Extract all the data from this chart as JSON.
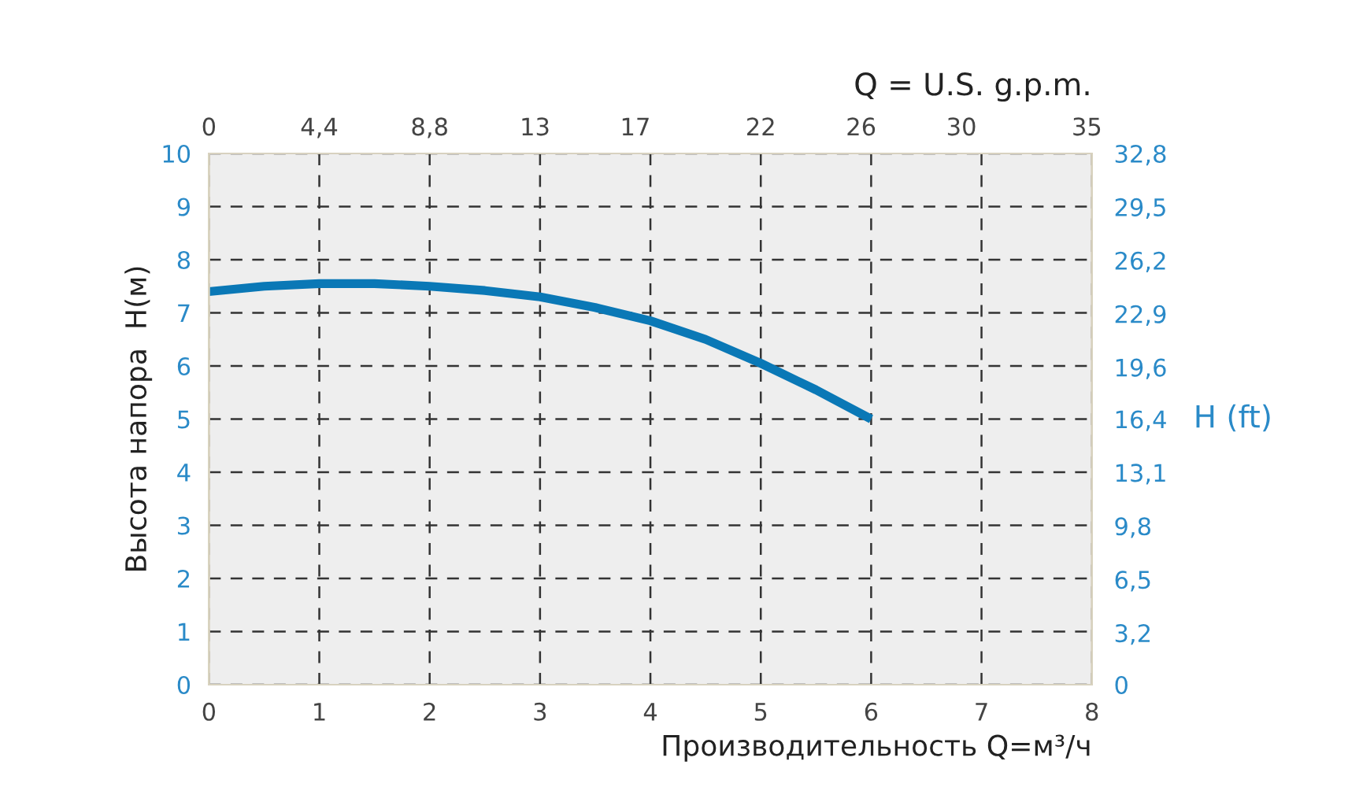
{
  "chart_data": {
    "type": "line",
    "xlabel": "Производительность Q=м³/ч",
    "ylabel": "Высота напора  H(м)",
    "x2label": "Q = U.S. g.p.m.",
    "y2label": "H (ft)",
    "series": [
      {
        "color": "#0a78b6",
        "x": [
          0,
          0.5,
          1,
          1.5,
          2,
          2.5,
          3,
          3.5,
          4,
          4.5,
          5,
          5.5,
          6
        ],
        "values": [
          7.4,
          7.5,
          7.55,
          7.55,
          7.5,
          7.42,
          7.3,
          7.1,
          6.85,
          6.5,
          6.05,
          5.55,
          5.0
        ]
      }
    ],
    "xlim": [
      0,
      8
    ],
    "xticks": [
      0,
      1,
      2,
      3,
      4,
      5,
      6,
      7,
      8
    ],
    "ylim": [
      0,
      10
    ],
    "yticks": [
      0,
      1,
      2,
      3,
      4,
      5,
      6,
      7,
      8,
      9,
      10
    ],
    "x2lim": [
      0,
      35.2
    ],
    "x2ticks": [
      0,
      {
        "value": 4.4,
        "label": "4,4"
      },
      {
        "value": 8.8,
        "label": "8,8"
      },
      13,
      17,
      22,
      26,
      30,
      35
    ],
    "y2lim": [
      0,
      32.8
    ],
    "y2ticks": [
      0,
      {
        "value": 3.2,
        "label": "3,2"
      },
      {
        "value": 6.5,
        "label": "6,5"
      },
      {
        "value": 9.8,
        "label": "9,8"
      },
      {
        "value": 13.1,
        "label": "13,1"
      },
      {
        "value": 16.4,
        "label": "16,4"
      },
      {
        "value": 19.6,
        "label": "19,6"
      },
      {
        "value": 22.9,
        "label": "22,9"
      },
      {
        "value": 26.2,
        "label": "26,2"
      },
      {
        "value": 29.5,
        "label": "29,5"
      },
      {
        "value": 32.8,
        "label": "32,8"
      }
    ],
    "grid": true,
    "line_style": "solid",
    "marker": "none"
  }
}
